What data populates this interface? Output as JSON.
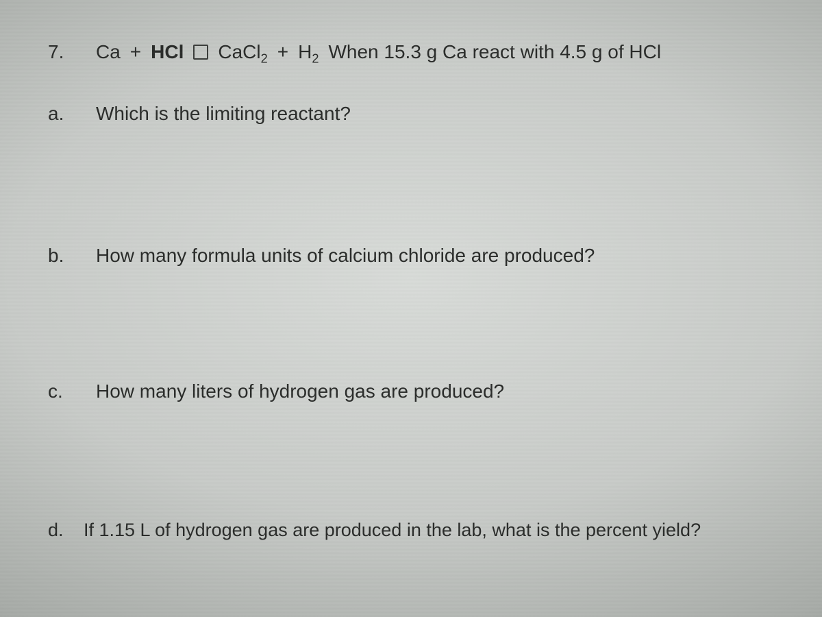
{
  "question_number": "7.",
  "equation": {
    "r1": "Ca",
    "plus": "+",
    "r2": "HCl",
    "p1_base": "CaCl",
    "p1_sub": "2",
    "p2_base": "H",
    "p2_sub": "2"
  },
  "given_text": "When 15.3 g Ca react with 4.5 g of HCl",
  "parts": {
    "a": {
      "label": "a.",
      "text": "Which is the limiting reactant?"
    },
    "b": {
      "label": "b.",
      "text": "How many formula units of calcium chloride are produced?"
    },
    "c": {
      "label": "c.",
      "text": "How many liters of hydrogen gas are produced?"
    },
    "d": {
      "label": "d.",
      "text": "If 1.15 L of hydrogen gas are produced in the lab, what is the percent yield?"
    }
  },
  "style": {
    "text_color": "#2a2c2a",
    "font_size_main": 28,
    "font_size_d": 27,
    "background_gradient": [
      "#d8dbd8",
      "#c8cbc8",
      "#a8aca8",
      "#7a7e7a",
      "#4a4e4a"
    ]
  }
}
